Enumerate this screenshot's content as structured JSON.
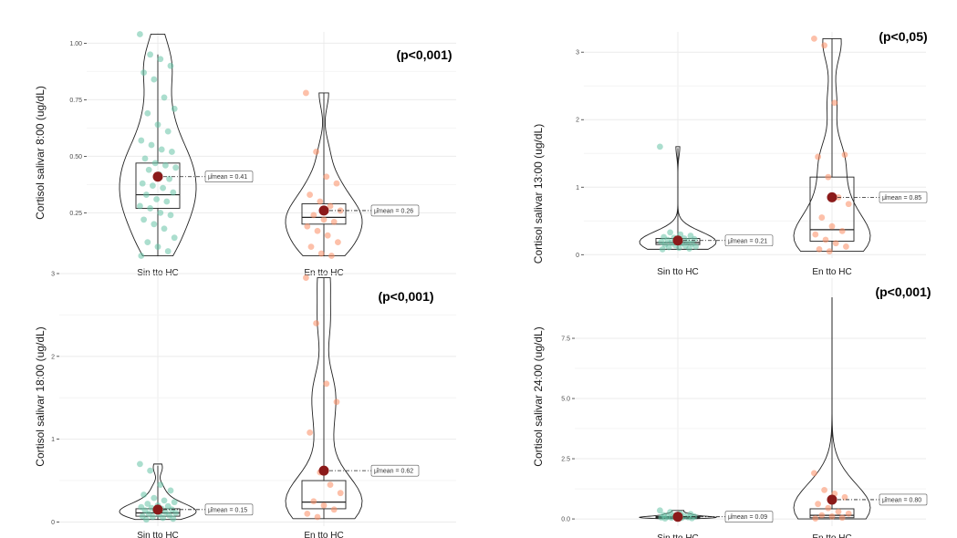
{
  "colors": {
    "group1": "#66c2a5",
    "group2": "#fc8d62",
    "mean": "#8b1a1a",
    "grid": "#ebebeb"
  },
  "chart_data": [
    {
      "type": "violin-box",
      "ylabel": "Cortisol salivar 8:00 (ug/dL)",
      "pvalue": "(p<0,001)",
      "categories": [
        "Sin tto HC",
        "En tto HC"
      ],
      "ylim": [
        0.05,
        1.05
      ],
      "yticks": [
        {
          "v": 0.25,
          "label": "0.25"
        },
        {
          "v": 0.5,
          "label": "0.50"
        },
        {
          "v": 0.75,
          "label": "0.75"
        },
        {
          "v": 1.0,
          "label": "1.00"
        }
      ],
      "groups": [
        {
          "mean": 0.41,
          "mean_label": "μ̂mean = 0.41",
          "q1": 0.27,
          "median": 0.33,
          "q3": 0.47,
          "min": 0.06,
          "max": 0.95,
          "points": [
            1.04,
            0.95,
            0.93,
            0.9,
            0.87,
            0.84,
            0.76,
            0.71,
            0.69,
            0.64,
            0.61,
            0.57,
            0.55,
            0.53,
            0.52,
            0.49,
            0.47,
            0.46,
            0.45,
            0.44,
            0.42,
            0.4,
            0.38,
            0.37,
            0.36,
            0.34,
            0.33,
            0.31,
            0.3,
            0.28,
            0.27,
            0.25,
            0.24,
            0.22,
            0.2,
            0.18,
            0.14,
            0.12,
            0.1,
            0.08,
            0.06
          ]
        },
        {
          "mean": 0.26,
          "mean_label": "μ̂mean = 0.26",
          "q1": 0.2,
          "median": 0.23,
          "q3": 0.29,
          "min": 0.06,
          "max": 0.78,
          "points": [
            0.78,
            0.52,
            0.41,
            0.38,
            0.33,
            0.3,
            0.28,
            0.26,
            0.24,
            0.22,
            0.21,
            0.19,
            0.17,
            0.15,
            0.12,
            0.1,
            0.07,
            0.06
          ]
        }
      ]
    },
    {
      "type": "violin-box",
      "ylabel": "Cortisol salivar 13:00 (ug/dL)",
      "pvalue": "(p<0,05)",
      "categories": [
        "Sin tto HC",
        "En tto HC"
      ],
      "ylim": [
        -0.05,
        3.3
      ],
      "yticks": [
        {
          "v": 0,
          "label": "0"
        },
        {
          "v": 1,
          "label": "1"
        },
        {
          "v": 2,
          "label": "2"
        },
        {
          "v": 3,
          "label": "3"
        }
      ],
      "groups": [
        {
          "mean": 0.21,
          "mean_label": "μ̂mean = 0.21",
          "q1": 0.15,
          "median": 0.18,
          "q3": 0.24,
          "min": 0.08,
          "max": 1.58,
          "points": [
            1.6,
            0.33,
            0.3,
            0.28,
            0.26,
            0.25,
            0.24,
            0.23,
            0.22,
            0.21,
            0.2,
            0.19,
            0.18,
            0.17,
            0.16,
            0.15,
            0.14,
            0.13,
            0.12,
            0.11,
            0.1,
            0.09,
            0.08
          ]
        },
        {
          "mean": 0.85,
          "mean_label": "μ̂mean = 0.85",
          "q1": 0.2,
          "median": 0.37,
          "q3": 1.15,
          "min": 0.05,
          "max": 3.2,
          "points": [
            3.2,
            3.1,
            2.25,
            1.48,
            1.45,
            1.15,
            0.85,
            0.75,
            0.55,
            0.42,
            0.35,
            0.3,
            0.22,
            0.17,
            0.12,
            0.08,
            0.05
          ]
        }
      ]
    },
    {
      "type": "violin-box",
      "ylabel": "Cortisol salivar 18:00 (ug/dL)",
      "pvalue": "(p<0,001)",
      "categories": [
        "Sin tto HC",
        "En tto HC"
      ],
      "ylim": [
        -0.05,
        3.0
      ],
      "yticks": [
        {
          "v": 0,
          "label": "0"
        },
        {
          "v": 1,
          "label": "1"
        },
        {
          "v": 2,
          "label": "2"
        },
        {
          "v": 3,
          "label": "3"
        }
      ],
      "groups": [
        {
          "mean": 0.15,
          "mean_label": "μ̂mean = 0.15",
          "q1": 0.07,
          "median": 0.11,
          "q3": 0.16,
          "min": 0.03,
          "max": 0.68,
          "points": [
            0.7,
            0.62,
            0.45,
            0.38,
            0.33,
            0.29,
            0.26,
            0.24,
            0.22,
            0.2,
            0.19,
            0.18,
            0.17,
            0.16,
            0.15,
            0.14,
            0.13,
            0.12,
            0.11,
            0.1,
            0.09,
            0.08,
            0.07,
            0.06,
            0.05,
            0.04,
            0.03
          ]
        },
        {
          "mean": 0.62,
          "mean_label": "μ̂mean = 0.62",
          "q1": 0.16,
          "median": 0.24,
          "q3": 0.5,
          "min": 0.04,
          "max": 2.95,
          "points": [
            2.95,
            2.4,
            1.67,
            1.45,
            1.08,
            0.6,
            0.45,
            0.35,
            0.25,
            0.2,
            0.15,
            0.1,
            0.06
          ]
        }
      ]
    },
    {
      "type": "violin-box",
      "ylabel": "Cortisol salivar 24:00 (ug/dL)",
      "pvalue": "(p<0,001)",
      "categories": [
        "Sin tto HC",
        "En tto HC"
      ],
      "ylim": [
        -0.3,
        10.0
      ],
      "yticks": [
        {
          "v": 0,
          "label": "0.0"
        },
        {
          "v": 2.5,
          "label": "2.5"
        },
        {
          "v": 5,
          "label": "5.0"
        },
        {
          "v": 7.5,
          "label": "7.5"
        }
      ],
      "groups": [
        {
          "mean": 0.09,
          "mean_label": "μ̂mean = 0.09",
          "q1": 0.04,
          "median": 0.07,
          "q3": 0.1,
          "min": 0.01,
          "max": 0.3,
          "points": [
            0.35,
            0.28,
            0.22,
            0.2,
            0.16,
            0.14,
            0.12,
            0.1,
            0.09,
            0.08,
            0.07,
            0.06,
            0.05,
            0.04,
            0.03,
            0.02
          ]
        },
        {
          "mean": 0.8,
          "mean_label": "μ̂mean = 0.80",
          "q1": 0.05,
          "median": 0.15,
          "q3": 0.42,
          "min": 0.0,
          "max": 9.2,
          "points": [
            1.9,
            1.2,
            1.05,
            0.9,
            0.62,
            0.45,
            0.3,
            0.22,
            0.15,
            0.1,
            0.05,
            0.02
          ]
        }
      ]
    }
  ]
}
